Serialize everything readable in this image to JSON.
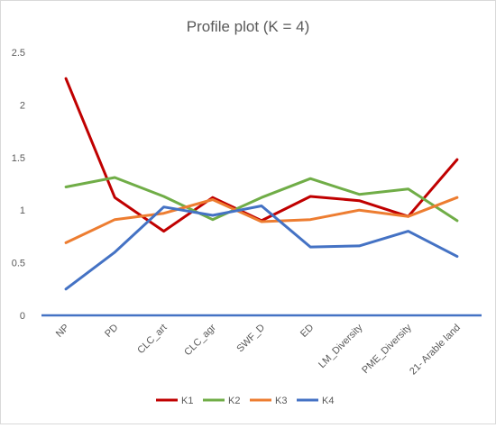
{
  "chart_data": {
    "type": "line",
    "title": "Profile plot (K = 4)",
    "xlabel": "",
    "ylabel": "",
    "categories": [
      "NP",
      "PD",
      "CLC_art",
      "CLC_agr",
      "SWF_D",
      "ED",
      "LM_Diversity",
      "PME_Diversity",
      "21- Arable land"
    ],
    "ylim": [
      0,
      2.5
    ],
    "yticks": [
      "0",
      "0.5",
      "1",
      "1.5",
      "2",
      "2.5"
    ],
    "grid": false,
    "legend_position": "bottom",
    "baseline_color": "#4472C4",
    "series": [
      {
        "name": "K1",
        "color": "#C00000",
        "values": [
          2.25,
          1.12,
          0.8,
          1.12,
          0.9,
          1.13,
          1.09,
          0.94,
          1.48
        ]
      },
      {
        "name": "K2",
        "color": "#70AD47",
        "values": [
          1.22,
          1.31,
          1.13,
          0.91,
          1.12,
          1.3,
          1.15,
          1.2,
          0.9
        ]
      },
      {
        "name": "K3",
        "color": "#ED7D31",
        "values": [
          0.69,
          0.91,
          0.97,
          1.1,
          0.89,
          0.91,
          1.0,
          0.94,
          1.12
        ]
      },
      {
        "name": "K4",
        "color": "#4472C4",
        "values": [
          0.25,
          0.6,
          1.03,
          0.95,
          1.04,
          0.65,
          0.66,
          0.8,
          0.56
        ]
      }
    ]
  }
}
